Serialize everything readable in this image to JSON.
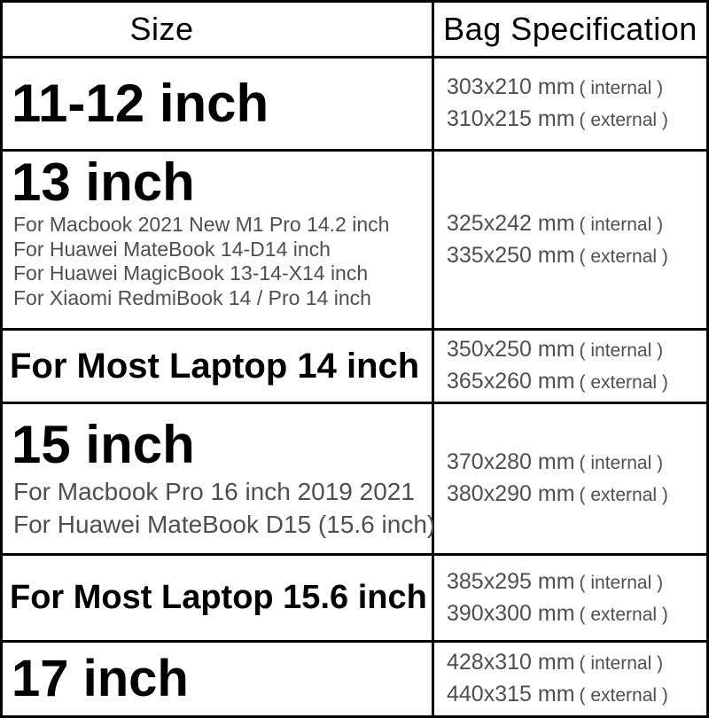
{
  "table": {
    "header": {
      "col_size": "Size",
      "col_spec": "Bag Specification"
    },
    "rows": [
      {
        "title": "11-12 inch",
        "sublines": [],
        "specs": [
          {
            "dims": "303x210 mm",
            "scope": "( internal )"
          },
          {
            "dims": "310x215 mm",
            "scope": "( external )"
          }
        ]
      },
      {
        "title": "13 inch",
        "sublines": [
          "For Macbook 2021 New M1 Pro 14.2 inch",
          "For Huawei MateBook 14-D14 inch",
          "For Huawei MagicBook 13-14-X14 inch",
          "For Xiaomi RedmiBook 14 / Pro 14 inch"
        ],
        "specs": [
          {
            "dims": "325x242 mm",
            "scope": "( internal )"
          },
          {
            "dims": "335x250 mm",
            "scope": "( external )"
          }
        ]
      },
      {
        "title": "For Most Laptop 14 inch",
        "sublines": [],
        "specs": [
          {
            "dims": "350x250 mm",
            "scope": "( internal )"
          },
          {
            "dims": "365x260 mm",
            "scope": "( external )"
          }
        ]
      },
      {
        "title": "15 inch",
        "sublines": [
          "For Macbook Pro 16 inch 2019 2021",
          "For Huawei MateBook D15 (15.6 inch)"
        ],
        "specs": [
          {
            "dims": "370x280 mm",
            "scope": "( internal )"
          },
          {
            "dims": "380x290 mm",
            "scope": "( external )"
          }
        ]
      },
      {
        "title": "For Most Laptop 15.6 inch",
        "sublines": [],
        "specs": [
          {
            "dims": "385x295 mm",
            "scope": "( internal )"
          },
          {
            "dims": "390x300 mm",
            "scope": "( external )"
          }
        ]
      },
      {
        "title": "17 inch",
        "sublines": [],
        "specs": [
          {
            "dims": "428x310 mm",
            "scope": "( internal )"
          },
          {
            "dims": "440x315 mm",
            "scope": "( external )"
          }
        ]
      }
    ],
    "colors": {
      "border": "#000000",
      "title_text": "#000000",
      "secondary_text": "#4f4f50",
      "background": "#ffffff"
    }
  }
}
